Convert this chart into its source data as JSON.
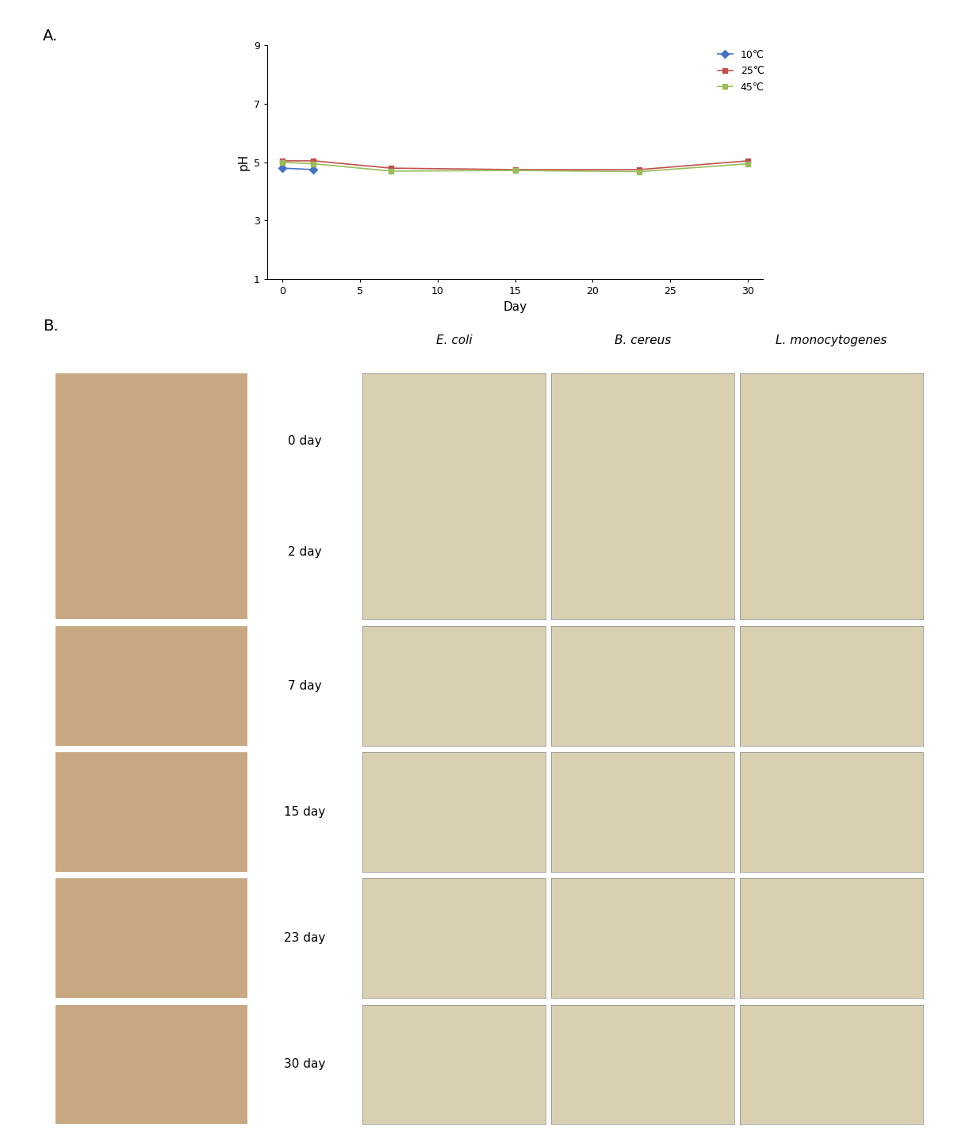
{
  "panel_a_label": "A.",
  "panel_b_label": "B.",
  "days_all": [
    0,
    2,
    7,
    15,
    23,
    30
  ],
  "days_10C": [
    0,
    2
  ],
  "ph_10C": [
    4.8,
    4.75
  ],
  "ph_25C": [
    5.05,
    5.05,
    4.8,
    4.75,
    4.75,
    5.05
  ],
  "ph_45C": [
    5.0,
    4.95,
    4.7,
    4.72,
    4.68,
    4.95
  ],
  "color_10C": "#4472C4",
  "color_25C": "#C0504D",
  "color_45C": "#9BBB59",
  "legend_10C": "10℃",
  "legend_25C": "25℃",
  "legend_45C": "45℃",
  "ylabel": "pH",
  "xlabel": "Day",
  "ylim": [
    1,
    9
  ],
  "yticks": [
    1,
    3,
    5,
    7,
    9
  ],
  "xticks": [
    0,
    5,
    10,
    15,
    20,
    25,
    30
  ],
  "col_labels": [
    "E. coli",
    "B. cereus",
    "L. monocytogenes"
  ],
  "background_color": "#ffffff",
  "marker_square": "s",
  "marker_diamond": "D",
  "linewidth": 1.2,
  "markersize": 5,
  "photo_color": "#c8a882",
  "petri_color": "#d8d0b0",
  "row_day_labels_top": [
    "0 day",
    "2 day"
  ],
  "row_day_labels_single": [
    "7 day",
    "15 day",
    "23 day",
    "30 day"
  ]
}
